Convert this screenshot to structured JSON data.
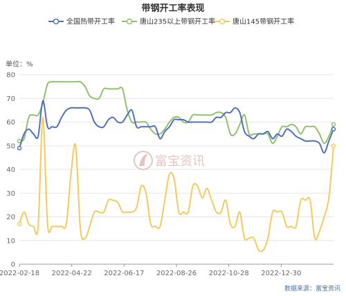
{
  "chart_data": {
    "type": "line",
    "title": "带钢开工率表现",
    "unit_label": "单位：%",
    "source": "数据来源：富宝资讯",
    "watermark": "富宝资讯",
    "ylim": [
      0,
      80
    ],
    "yticks": [
      "0",
      "10",
      "20",
      "30",
      "40",
      "50",
      "60",
      "70",
      "80"
    ],
    "xtick_labels": [
      "2022-02-18",
      "2022-04-22",
      "2022-06-17",
      "2022-08-26",
      "2022-10-28",
      "2022-12-30"
    ],
    "legend_position": "top",
    "grid": true,
    "series": [
      {
        "name": "全国热带开工率",
        "color": "#4f6fbf",
        "values": [
          49,
          55,
          57,
          55,
          54,
          69,
          58,
          58,
          58,
          62,
          65,
          66,
          66,
          66,
          66,
          65,
          60,
          58,
          58,
          61,
          62,
          60,
          60,
          63,
          65,
          58,
          58,
          58,
          58,
          58,
          53,
          56,
          58,
          61,
          61,
          61,
          60,
          60,
          60,
          60,
          60,
          60,
          62,
          62,
          64,
          64,
          66,
          64,
          56,
          54,
          53,
          55,
          55,
          56,
          53,
          55,
          54,
          57,
          56,
          54,
          53,
          52,
          52,
          52,
          51,
          47,
          52,
          57
        ]
      },
      {
        "name": "唐山235以上带钢开工率",
        "color": "#8ec26a",
        "values": [
          52,
          53,
          62,
          63,
          63,
          68,
          76,
          77,
          77,
          77,
          77,
          77,
          77,
          77,
          75,
          71,
          70,
          70,
          74,
          74,
          74,
          74,
          74,
          65,
          60,
          60,
          60,
          60,
          57,
          55,
          55,
          57,
          60,
          62,
          62,
          60,
          60,
          63,
          63,
          63,
          63,
          63,
          64,
          64,
          62,
          55,
          55,
          59,
          63,
          55,
          55,
          55,
          55,
          55,
          51,
          54,
          58,
          58,
          59,
          58,
          55,
          58,
          58,
          58,
          55,
          51,
          54,
          59
        ]
      },
      {
        "name": "唐山145带钢开工率",
        "color": "#f7c95a",
        "values": [
          17,
          22,
          17,
          16,
          16,
          62,
          17,
          16,
          16,
          16,
          17,
          38,
          50,
          15,
          11,
          16,
          22,
          22,
          22,
          27,
          27,
          26,
          22,
          22,
          22,
          24,
          33,
          30,
          17,
          16,
          16,
          27,
          38,
          36,
          22,
          22,
          22,
          33,
          33,
          28,
          32,
          27,
          22,
          22,
          27,
          17,
          16,
          22,
          11,
          11,
          11,
          6,
          6,
          11,
          22,
          22,
          22,
          16,
          16,
          16,
          27,
          27,
          27,
          11,
          14,
          20,
          28,
          50
        ]
      }
    ]
  }
}
